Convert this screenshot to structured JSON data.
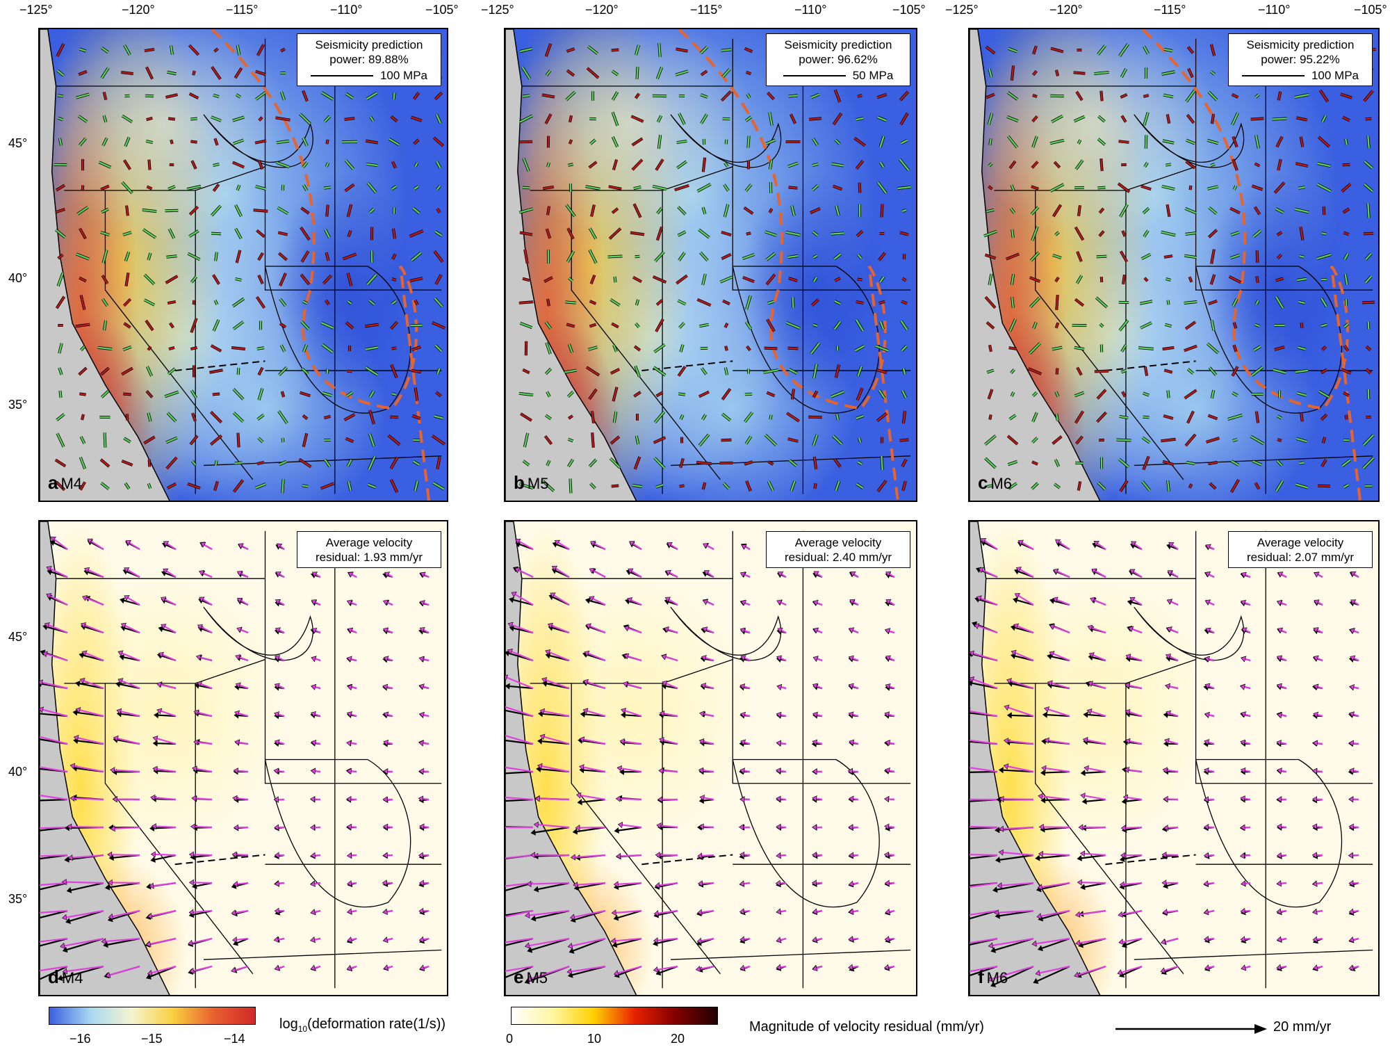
{
  "longitude_ticks": [
    "−125°",
    "−120°",
    "−115°",
    "−110°",
    "−105°"
  ],
  "latitude_ticks": [
    "45°",
    "40°",
    "35°"
  ],
  "panels": [
    {
      "letter": "a",
      "magnitude": "M4",
      "box_line1": "Seismicity prediction",
      "box_line2": "power: 89.88%",
      "scale_label": "100 MPa",
      "type": "rate"
    },
    {
      "letter": "b",
      "magnitude": "M5",
      "box_line1": "Seismicity prediction",
      "box_line2": "power: 96.62%",
      "scale_label": "50 MPa",
      "type": "rate"
    },
    {
      "letter": "c",
      "magnitude": "M6",
      "box_line1": "Seismicity prediction",
      "box_line2": "power: 95.22%",
      "scale_label": "100 MPa",
      "type": "rate"
    },
    {
      "letter": "d",
      "magnitude": "M4",
      "box_line1": "Average velocity",
      "box_line2": "residual: 1.93 mm/yr",
      "type": "velocity"
    },
    {
      "letter": "e",
      "magnitude": "M5",
      "box_line1": "Average velocity",
      "box_line2": "residual: 2.40 mm/yr",
      "type": "velocity"
    },
    {
      "letter": "f",
      "magnitude": "M6",
      "box_line1": "Average velocity",
      "box_line2": "residual: 2.07 mm/yr",
      "type": "velocity"
    }
  ],
  "colorbar_rate": {
    "title_prefix": "log",
    "title_sub": "10",
    "title_suffix": "(deformation rate(1/s))",
    "ticks": [
      "−16",
      "−15",
      "−14"
    ],
    "colors": [
      "#3a5fe0",
      "#a8d8f0",
      "#f4f4d0",
      "#f9d040",
      "#e86030",
      "#d02828"
    ]
  },
  "colorbar_velocity": {
    "title": "Magnitude of velocity residual (mm/yr)",
    "ticks": [
      "0",
      "10",
      "20"
    ],
    "colors": [
      "#ffffff",
      "#fff6a0",
      "#ffd000",
      "#e82000",
      "#800000",
      "#200000"
    ]
  },
  "velocity_scale": {
    "label": "20 mm/yr"
  },
  "colors": {
    "land_gray": "#c8c8c8",
    "dashed_orange": "#e8642a",
    "arrow_magenta": "#e040e0",
    "bar_green": "#5ad25a",
    "bar_red": "#c01818"
  }
}
